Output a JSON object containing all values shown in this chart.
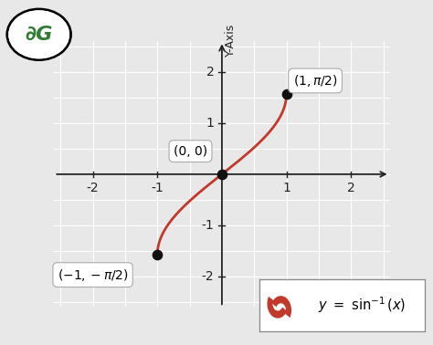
{
  "ylabel": "Y-Axis",
  "xlim": [
    -2.6,
    2.6
  ],
  "ylim": [
    -2.6,
    2.6
  ],
  "xticks": [
    -2,
    -1,
    1,
    2
  ],
  "yticks": [
    -1,
    1,
    2
  ],
  "yticks_neg": [
    -1
  ],
  "curve_color": "#c0392b",
  "curve_linewidth": 2.0,
  "point_color": "#111111",
  "point_size": 55,
  "background_color": "#e8e8e8",
  "grid_color": "#ffffff",
  "axis_color": "#222222",
  "tick_fontsize": 10,
  "label_fontsize": 10
}
